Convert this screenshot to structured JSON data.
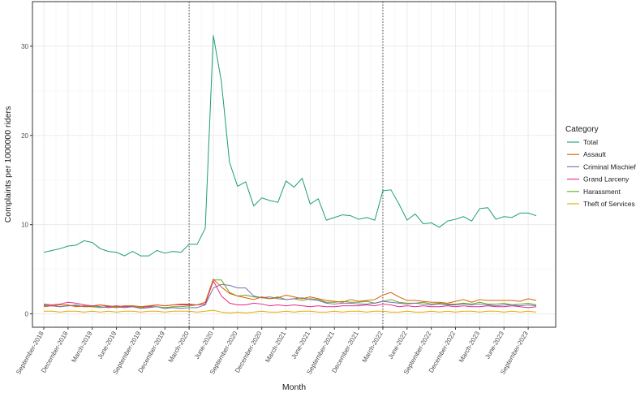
{
  "chart_data": {
    "type": "line",
    "xlabel": "Month",
    "ylabel": "Complaints per 1000000 riders",
    "ylim": [
      -1.5,
      35
    ],
    "y_ticks": [
      0,
      10,
      20,
      30
    ],
    "y_tick_labels": [
      "0",
      "10",
      "20",
      "30"
    ],
    "x_start": "2018-09",
    "x_end": "2023-08",
    "x_tick_labels": [
      "September-2018",
      "December-2018",
      "March-2019",
      "June-2019",
      "September-2019",
      "December-2019",
      "March-2020",
      "June-2020",
      "September-2020",
      "December-2020",
      "March-2021",
      "June-2021",
      "September-2021",
      "December-2021",
      "March-2022",
      "June-2022",
      "September-2022",
      "December-2022",
      "March-2023",
      "June-2023",
      "September-2023"
    ],
    "vlines": [
      "2020-03",
      "2022-03"
    ],
    "grid": true,
    "legend_title": "Category",
    "legend_position": "right",
    "series": [
      {
        "name": "Total",
        "color": "#1b9e77",
        "values": [
          6.9,
          7.1,
          7.3,
          7.6,
          7.7,
          8.2,
          8.0,
          7.3,
          7.0,
          6.9,
          6.5,
          7.0,
          6.5,
          6.5,
          7.1,
          6.8,
          7.0,
          6.9,
          7.8,
          7.8,
          9.6,
          31.2,
          26.0,
          17.0,
          14.3,
          14.8,
          12.1,
          13.0,
          12.7,
          12.5,
          14.9,
          14.2,
          15.2,
          12.3,
          12.9,
          10.5,
          10.8,
          11.1,
          11.0,
          10.6,
          10.8,
          10.5,
          13.8,
          13.9,
          12.3,
          10.5,
          11.2,
          10.1,
          10.2,
          9.7,
          10.4,
          10.6,
          10.9,
          10.4,
          11.8,
          11.9,
          10.6,
          10.9,
          10.8,
          11.3,
          11.3,
          11.0
        ]
      },
      {
        "name": "Assault",
        "color": "#d95f02",
        "values": [
          0.8,
          0.9,
          1.0,
          1.0,
          0.8,
          0.9,
          0.8,
          1.0,
          0.9,
          0.8,
          0.9,
          0.9,
          0.8,
          0.9,
          1.0,
          0.9,
          1.0,
          1.1,
          1.1,
          1.0,
          1.3,
          3.9,
          3.0,
          2.3,
          2.0,
          1.8,
          1.6,
          1.9,
          1.7,
          1.8,
          2.1,
          1.9,
          1.7,
          1.9,
          1.7,
          1.5,
          1.4,
          1.3,
          1.6,
          1.4,
          1.5,
          1.6,
          2.1,
          2.4,
          1.9,
          1.5,
          1.5,
          1.4,
          1.3,
          1.3,
          1.2,
          1.4,
          1.6,
          1.3,
          1.6,
          1.5,
          1.5,
          1.5,
          1.5,
          1.4,
          1.7,
          1.5
        ]
      },
      {
        "name": "Criminal Mischief",
        "color": "#7570b3",
        "values": [
          1.0,
          0.9,
          0.8,
          0.9,
          1.0,
          0.8,
          0.9,
          0.8,
          0.7,
          0.8,
          0.7,
          0.8,
          0.6,
          0.7,
          0.8,
          0.6,
          0.7,
          0.6,
          0.7,
          0.7,
          1.0,
          2.9,
          3.3,
          3.2,
          2.9,
          2.9,
          2.0,
          1.8,
          1.9,
          1.7,
          1.6,
          1.7,
          1.8,
          1.6,
          1.5,
          1.2,
          1.1,
          1.2,
          1.2,
          1.1,
          1.1,
          1.2,
          1.4,
          1.3,
          1.2,
          1.1,
          1.2,
          1.1,
          1.0,
          1.1,
          1.0,
          1.0,
          1.1,
          1.0,
          1.1,
          1.0,
          0.9,
          1.0,
          1.0,
          0.9,
          1.0,
          0.9
        ]
      },
      {
        "name": "Grand Larceny",
        "color": "#e7298a",
        "values": [
          1.1,
          1.0,
          1.1,
          1.3,
          1.2,
          1.0,
          0.9,
          1.0,
          0.8,
          0.9,
          0.8,
          0.9,
          0.8,
          0.8,
          1.0,
          0.9,
          1.0,
          1.0,
          1.0,
          1.0,
          1.1,
          3.7,
          2.0,
          1.2,
          1.0,
          1.0,
          1.2,
          1.1,
          0.9,
          1.0,
          0.9,
          1.0,
          0.9,
          0.8,
          0.9,
          0.8,
          0.8,
          0.9,
          0.9,
          0.9,
          1.0,
          0.9,
          1.1,
          1.0,
          0.8,
          0.9,
          0.8,
          0.9,
          0.8,
          0.8,
          0.9,
          0.8,
          0.9,
          0.8,
          0.8,
          0.9,
          0.8,
          0.8,
          0.9,
          0.8,
          0.7,
          0.8
        ]
      },
      {
        "name": "Harassment",
        "color": "#66a61e",
        "values": [
          0.9,
          0.9,
          0.8,
          0.9,
          0.9,
          0.8,
          0.8,
          0.7,
          0.8,
          0.7,
          0.8,
          0.8,
          0.7,
          0.8,
          0.8,
          0.7,
          0.8,
          0.8,
          0.9,
          1.0,
          1.1,
          3.8,
          3.8,
          2.4,
          2.0,
          2.1,
          1.9,
          1.8,
          1.7,
          1.9,
          1.6,
          1.7,
          1.5,
          1.7,
          1.6,
          1.3,
          1.3,
          1.4,
          1.3,
          1.3,
          1.4,
          1.2,
          1.4,
          1.6,
          1.3,
          1.2,
          1.2,
          1.3,
          1.1,
          1.2,
          1.1,
          1.1,
          1.2,
          1.1,
          1.3,
          1.1,
          1.1,
          1.2,
          1.0,
          1.1,
          1.2,
          1.0
        ]
      },
      {
        "name": "Theft of Services",
        "color": "#e6ab02",
        "values": [
          0.3,
          0.3,
          0.2,
          0.3,
          0.3,
          0.2,
          0.3,
          0.2,
          0.3,
          0.2,
          0.3,
          0.3,
          0.2,
          0.3,
          0.3,
          0.2,
          0.3,
          0.3,
          0.3,
          0.2,
          0.3,
          0.4,
          0.2,
          0.1,
          0.2,
          0.1,
          0.2,
          0.3,
          0.2,
          0.2,
          0.3,
          0.2,
          0.3,
          0.3,
          0.2,
          0.2,
          0.3,
          0.2,
          0.3,
          0.3,
          0.2,
          0.3,
          0.3,
          0.2,
          0.2,
          0.3,
          0.2,
          0.2,
          0.3,
          0.2,
          0.3,
          0.2,
          0.3,
          0.3,
          0.2,
          0.3,
          0.3,
          0.2,
          0.3,
          0.2,
          0.3,
          0.2
        ]
      }
    ]
  }
}
